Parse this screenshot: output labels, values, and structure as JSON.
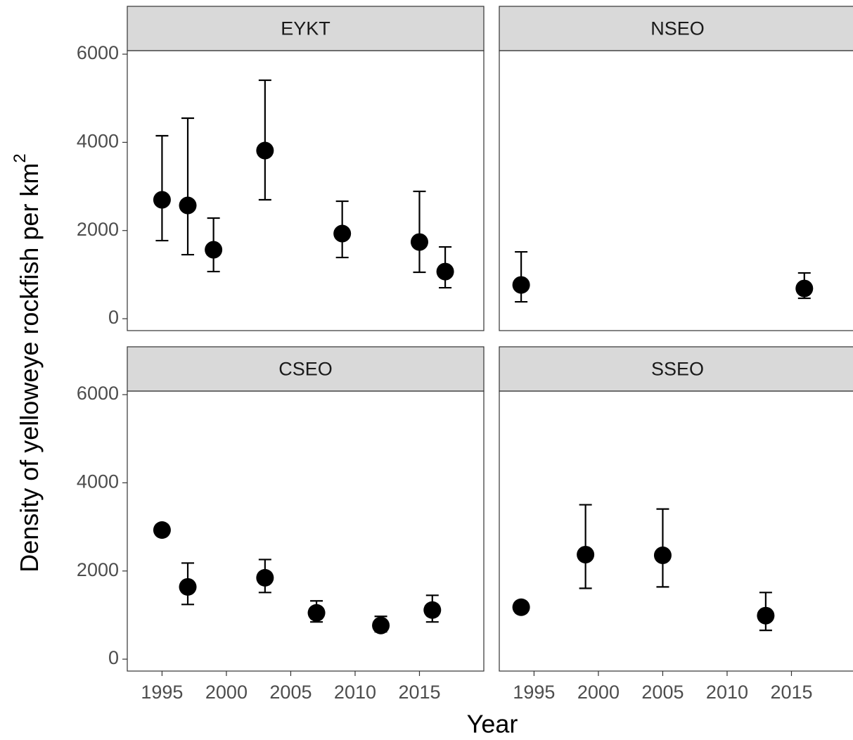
{
  "chart_data": [
    {
      "type": "errorpoint",
      "title": "EYKT",
      "x": [
        1995,
        1997,
        1999,
        2003,
        2009,
        2015,
        2017
      ],
      "values": [
        2697,
        2569,
        1564,
        3814,
        1931,
        1739,
        1069
      ],
      "lower": [
        1771,
        1452,
        1069,
        2697,
        1388,
        1053,
        702
      ],
      "upper": [
        4149,
        4548,
        2282,
        5409,
        2665,
        2888,
        1628
      ],
      "color": "#000000",
      "xlim": [
        1992.3,
        2020
      ],
      "ylim": [
        -270,
        6080
      ],
      "yticks": [
        0,
        2000,
        4000,
        6000
      ]
    },
    {
      "type": "errorpoint",
      "title": "NSEO",
      "x": [
        1994,
        2016
      ],
      "values": [
        766,
        686
      ],
      "lower": [
        383,
        463
      ],
      "upper": [
        1516,
        1037
      ],
      "color": "#000000",
      "xlim": [
        1992.3,
        2020
      ],
      "ylim": [
        -270,
        6080
      ]
    },
    {
      "type": "errorpoint",
      "title": "CSEO",
      "x": [
        1995,
        1997,
        2003,
        2007,
        2012,
        2016
      ],
      "values": [
        2929,
        1639,
        1846,
        1050,
        764,
        1114
      ],
      "lower": [
        null,
        1241,
        1512,
        844,
        621,
        844
      ],
      "upper": [
        null,
        2180,
        2260,
        1321,
        971,
        1448
      ],
      "color": "#000000",
      "xlim": [
        1992.3,
        2020
      ],
      "ylim": [
        -270,
        6080
      ],
      "yticks": [
        0,
        2000,
        4000,
        6000
      ],
      "xticks": [
        1995,
        2000,
        2005,
        2010,
        2015
      ]
    },
    {
      "type": "errorpoint",
      "title": "SSEO",
      "x": [
        1994,
        1999,
        2005,
        2013
      ],
      "values": [
        1178,
        2371,
        2356,
        987
      ],
      "lower": [
        null,
        1607,
        1639,
        653
      ],
      "upper": [
        null,
        3502,
        3406,
        1512
      ],
      "color": "#000000",
      "xlim": [
        1992.3,
        2020
      ],
      "ylim": [
        -270,
        6080
      ],
      "xticks": [
        1995,
        2000,
        2005,
        2010,
        2015
      ]
    }
  ],
  "xlabel": "Year",
  "ylabel": "Density of yelloweye rockfish per  km",
  "ylabel_superscript": "2"
}
